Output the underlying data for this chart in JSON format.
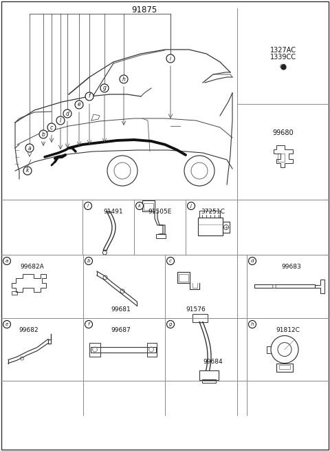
{
  "title": "91875",
  "bg_color": "#ffffff",
  "text_color": "#111111",
  "fig_width": 4.8,
  "fig_height": 6.55,
  "dpi": 100,
  "right_top_line1": "1327AC",
  "right_top_line2": "1339CC",
  "right_bot_label": "99680",
  "row1_letters": [
    "l",
    "k",
    "j"
  ],
  "row1_labels": [
    "91491",
    "91505E",
    "37251C"
  ],
  "row2_letters": [
    "a",
    "b",
    "c",
    "d"
  ],
  "row2_labels": [
    "99682A",
    "99681",
    "91576",
    "99683"
  ],
  "row3_letters": [
    "e",
    "f",
    "g",
    "h"
  ],
  "row3_labels": [
    "99682",
    "99687",
    "99684",
    "91812C"
  ],
  "lc": "#333333",
  "gc": "#888888",
  "grid_lw": 0.7,
  "outer_lw": 1.0
}
